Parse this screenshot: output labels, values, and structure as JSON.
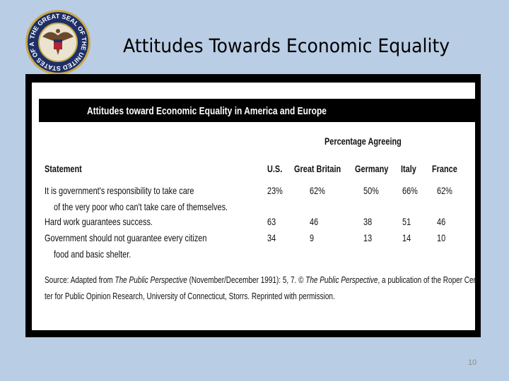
{
  "slide": {
    "title": "Attitudes Towards Economic Equality",
    "seal_text": "THE GREAT SEAL OF THE UNITED STATES OF AMERICA",
    "page_number": "10"
  },
  "table": {
    "title": "Attitudes toward Economic Equality in America and Europe",
    "group_header": "Percentage Agreeing",
    "columns": [
      "Statement",
      "U.S.",
      "Great Britain",
      "Germany",
      "Italy",
      "France"
    ],
    "rows": [
      {
        "statement": [
          "It is government's responsibility to take care",
          "of the very poor who can't take care of themselves."
        ],
        "values": [
          "23%",
          "62%",
          "50%",
          "66%",
          "62%"
        ]
      },
      {
        "statement": [
          "Hard work guarantees success."
        ],
        "values": [
          "63",
          "46",
          "38",
          "51",
          "46"
        ]
      },
      {
        "statement": [
          "Government should not guarantee every citizen",
          "food and basic shelter."
        ],
        "values": [
          "34",
          "9",
          "13",
          "14",
          "10"
        ]
      }
    ],
    "source": [
      [
        {
          "text": "Source: Adapted from ",
          "italic": false
        },
        {
          "text": "The Public Perspective",
          "italic": true
        },
        {
          "text": " (November/December 1991): 5, 7. © ",
          "italic": false
        },
        {
          "text": "The Public Perspective",
          "italic": true
        },
        {
          "text": ", a publication of the Roper Cen-",
          "italic": false
        }
      ],
      [
        {
          "text": "ter for Public Opinion Research, University of Connecticut, Storrs. Reprinted with permission.",
          "italic": false
        }
      ]
    ]
  }
}
